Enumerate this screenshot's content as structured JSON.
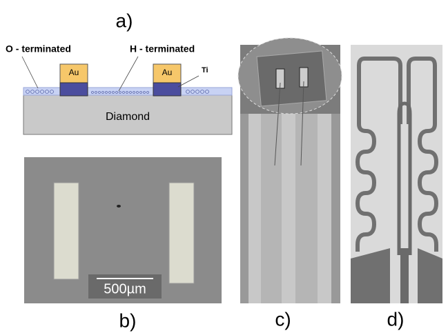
{
  "panel_a": {
    "label": "a)",
    "left_annotation": "O - terminated",
    "right_annotation": "H - terminated",
    "metal_annotation": "Ti",
    "left_contact": "Au",
    "right_contact": "Au",
    "substrate": "Diamond"
  },
  "panel_b": {
    "label": "b)",
    "scale_bar": "500µm"
  },
  "panel_c": {
    "label": "c)"
  },
  "panel_d": {
    "label": "d)"
  }
}
